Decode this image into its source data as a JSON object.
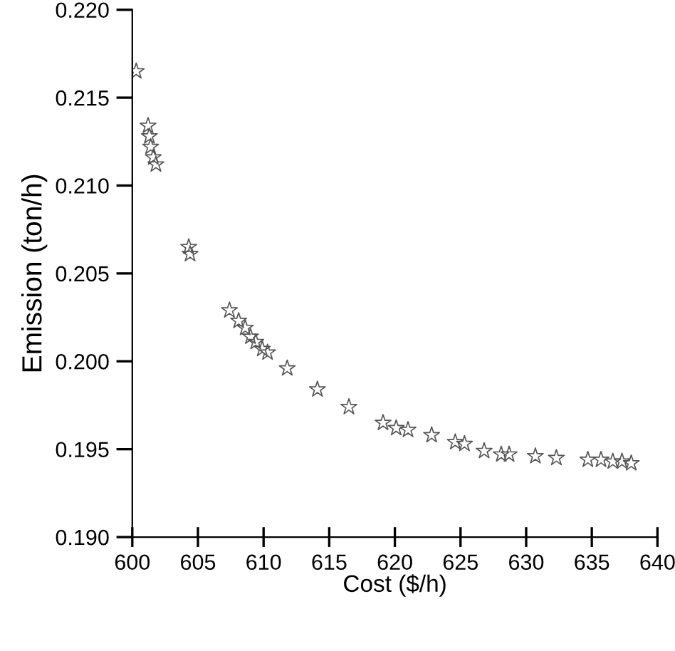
{
  "chart_data": {
    "type": "scatter",
    "xlabel": "Cost ($/h)",
    "ylabel": "Emission (ton/h)",
    "xlim": [
      600,
      640
    ],
    "xticks": [
      600,
      605,
      610,
      615,
      620,
      625,
      630,
      635,
      640
    ],
    "ylim": [
      0.19,
      0.22
    ],
    "yticks": [
      {
        "value": 0.19,
        "label": "0.190"
      },
      {
        "value": 0.195,
        "label": "0.195"
      },
      {
        "value": 0.2,
        "label": "0.200"
      },
      {
        "value": 0.205,
        "label": "0.205"
      },
      {
        "value": 0.21,
        "label": "0.210"
      },
      {
        "value": 0.215,
        "label": "0.215"
      },
      {
        "value": 0.22,
        "label": "0.220"
      }
    ],
    "grid": false,
    "marker": "star",
    "series": [
      {
        "color": "#555555",
        "x": [
          600.3,
          601.2,
          601.3,
          601.4,
          601.6,
          601.8,
          604.3,
          604.4,
          607.4,
          608.1,
          608.6,
          609.0,
          609.4,
          609.9,
          610.3,
          611.8,
          614.1,
          616.5,
          619.1,
          620.1,
          621.0,
          622.8,
          624.6,
          625.3,
          626.8,
          628.1,
          628.7,
          630.7,
          632.3,
          634.7,
          635.7,
          636.6,
          637.3,
          638.0
        ],
        "values": [
          0.2165,
          0.2134,
          0.2128,
          0.2122,
          0.2116,
          0.2112,
          0.2065,
          0.2061,
          0.2029,
          0.2023,
          0.2019,
          0.2014,
          0.2011,
          0.2007,
          0.2005,
          0.1996,
          0.1984,
          0.1974,
          0.1965,
          0.1962,
          0.1961,
          0.1958,
          0.1954,
          0.1953,
          0.1949,
          0.1947,
          0.1947,
          0.1946,
          0.1945,
          0.1944,
          0.1944,
          0.1943,
          0.1943,
          0.1942
        ]
      }
    ]
  }
}
